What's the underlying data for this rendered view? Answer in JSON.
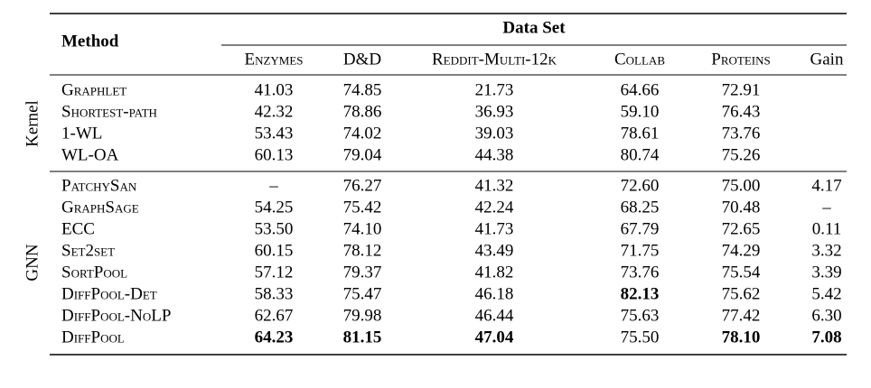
{
  "header": {
    "method": "Method",
    "dataset": "Data Set",
    "columns": [
      "Enzymes",
      "D&D",
      "Reddit-Multi-12k",
      "Collab",
      "Proteins",
      "Gain"
    ]
  },
  "groups": [
    {
      "label": "Kernel",
      "rows": [
        {
          "method": "Graphlet",
          "cells": [
            "41.03",
            "74.85",
            "21.73",
            "64.66",
            "72.91"
          ]
        },
        {
          "method": "Shortest-path",
          "cells": [
            "42.32",
            "78.86",
            "36.93",
            "59.10",
            "76.43"
          ]
        },
        {
          "method": "1-WL",
          "cells": [
            "53.43",
            "74.02",
            "39.03",
            "78.61",
            "73.76"
          ]
        },
        {
          "method": "WL-OA",
          "cells": [
            "60.13",
            "79.04",
            "44.38",
            "80.74",
            "75.26"
          ]
        }
      ]
    },
    {
      "label": "GNN",
      "rows": [
        {
          "method": "PatchySan",
          "cells": [
            "–",
            "76.27",
            "41.32",
            "72.60",
            "75.00",
            "4.17"
          ]
        },
        {
          "method": "GraphSage",
          "cells": [
            "54.25",
            "75.42",
            "42.24",
            "68.25",
            "70.48",
            "–"
          ]
        },
        {
          "method": "ECC",
          "cells": [
            "53.50",
            "74.10",
            "41.73",
            "67.79",
            "72.65",
            "0.11"
          ]
        },
        {
          "method": "Set2set",
          "cells": [
            "60.15",
            "78.12",
            "43.49",
            "71.75",
            "74.29",
            "3.32"
          ]
        },
        {
          "method": "SortPool",
          "cells": [
            "57.12",
            "79.37",
            "41.82",
            "73.76",
            "75.54",
            "3.39"
          ]
        },
        {
          "method": "DiffPool-Det",
          "cells": [
            "58.33",
            "75.47",
            "46.18",
            "82.13",
            "75.62",
            "5.42"
          ]
        },
        {
          "method": "DiffPool-NoLP",
          "cells": [
            "62.67",
            "79.98",
            "46.44",
            "75.63",
            "77.42",
            "6.30"
          ]
        },
        {
          "method": "DiffPool",
          "cells": [
            "64.23",
            "81.15",
            "47.04",
            "75.50",
            "78.10",
            "7.08"
          ]
        }
      ]
    }
  ]
}
